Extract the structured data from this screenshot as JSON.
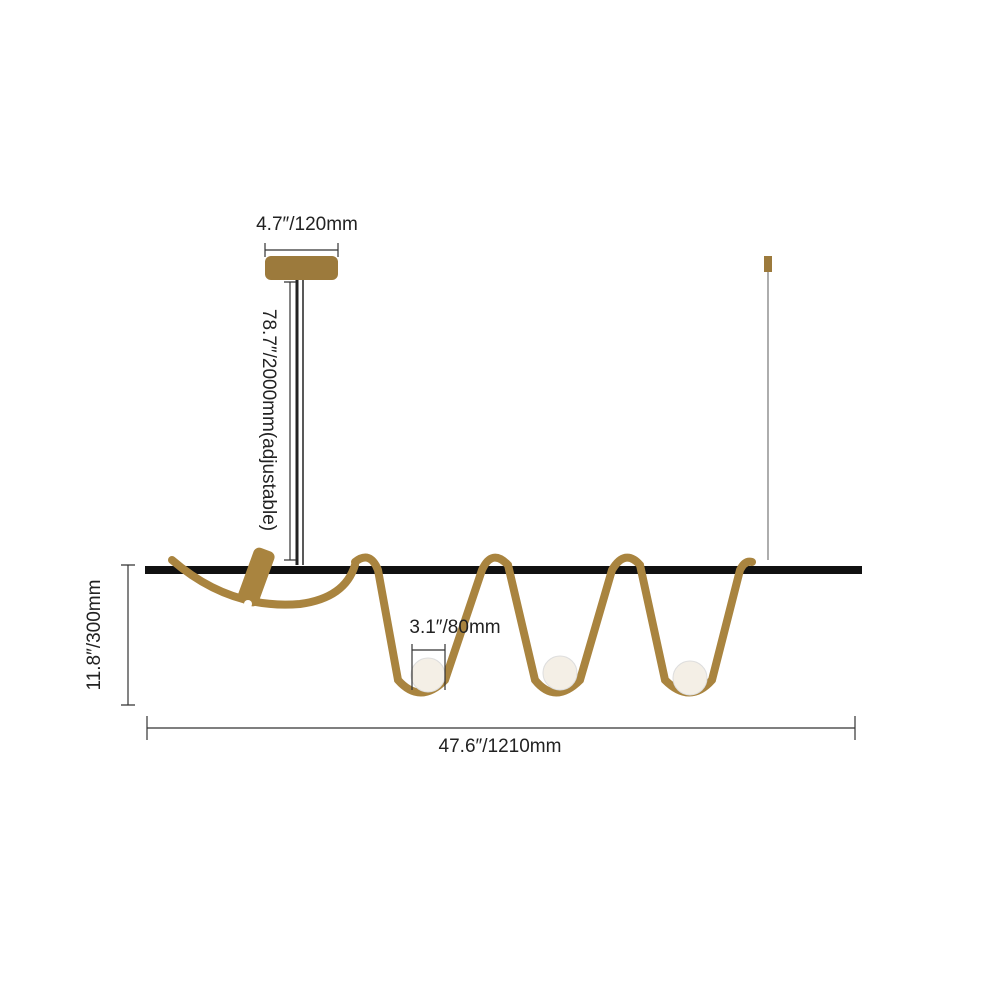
{
  "dimensions": {
    "canopy_diameter": "4.7″/120mm",
    "cable_length": "78.7″/2000mm(adjustable)",
    "height": "11.8″/300mm",
    "shade_diameter": "3.1″/80mm",
    "length": "47.6″/1210mm"
  }
}
